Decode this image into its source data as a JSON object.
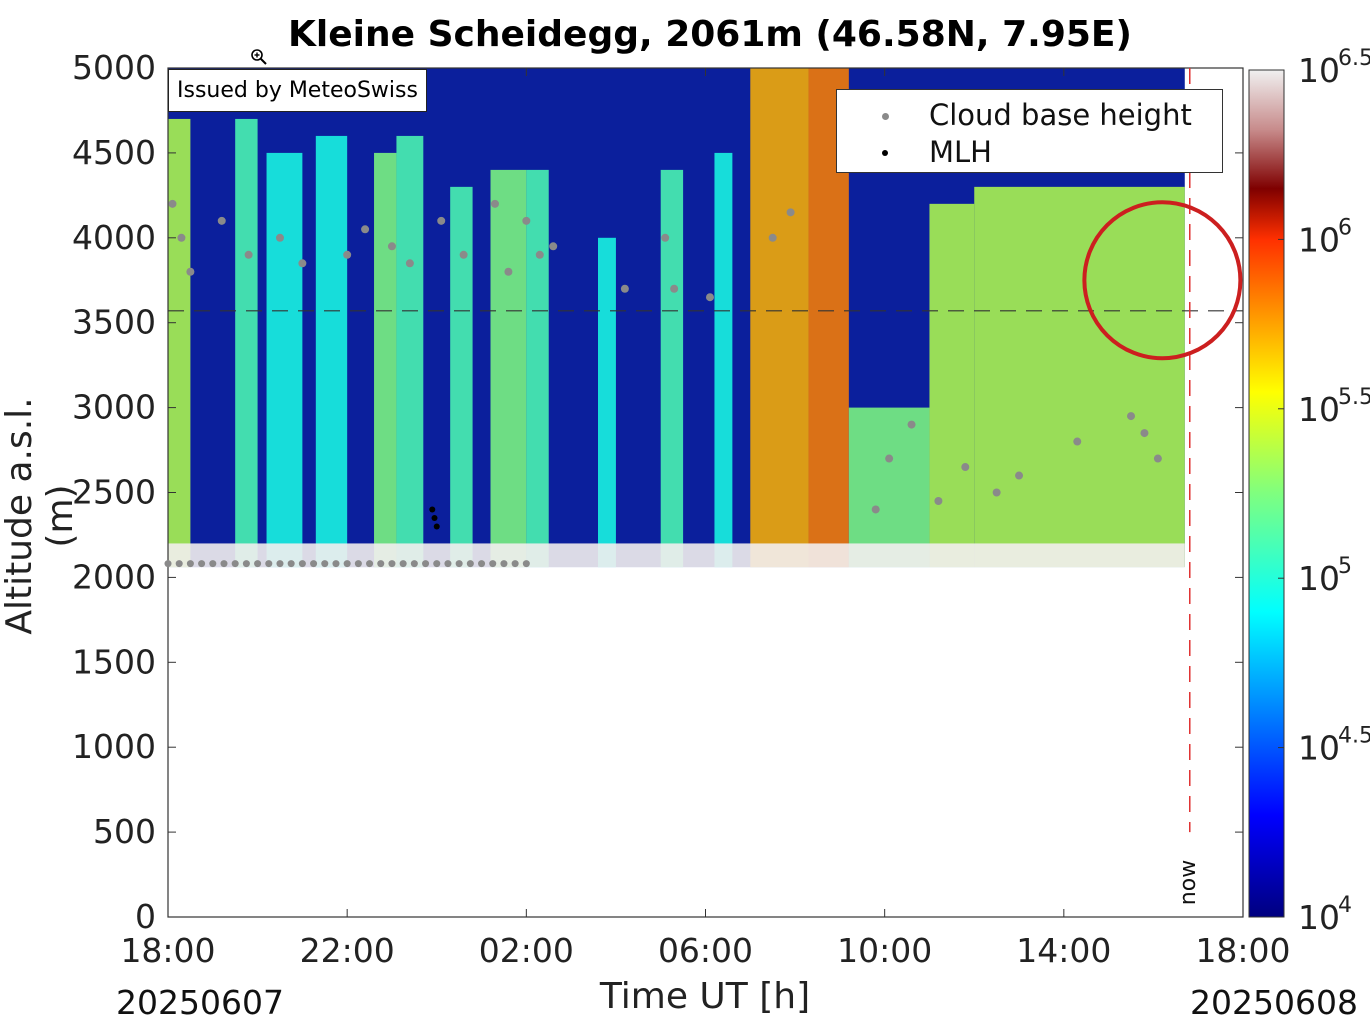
{
  "title": "Kleine Scheidegg, 2061m (46.58N, 7.95E)",
  "issued_by": "Issued by MeteoSwiss",
  "legend": {
    "items": [
      {
        "label": "Cloud base height",
        "color": "#8a8a8a"
      },
      {
        "label": "MLH",
        "color": "#000000"
      }
    ]
  },
  "now_label": "now",
  "date_start": "20250607",
  "date_end": "20250608",
  "icons": {
    "cursor": "zoom-in-icon"
  },
  "colors": {
    "annotation_circle": "#cc1f1f",
    "now_line": "#e03030",
    "background_fill": "#0b1f9c"
  },
  "chart_data": {
    "type": "heatmap",
    "xlabel": "Time UT [h]",
    "ylabel": "Altitude a.s.l. (m)",
    "x_ticks": [
      "18:00",
      "22:00",
      "02:00",
      "06:00",
      "10:00",
      "14:00",
      "18:00"
    ],
    "x_range_hours": [
      0,
      24
    ],
    "y_ticks": [
      0,
      500,
      1000,
      1500,
      2000,
      2500,
      3000,
      3500,
      4000,
      4500,
      5000
    ],
    "ylim": [
      0,
      5000
    ],
    "station_altitude_m": 2061,
    "now_hours": 22.7,
    "reference_altitude_m": 3570,
    "colorbar": {
      "ticks": [
        {
          "base": "10",
          "exp": "4"
        },
        {
          "base": "10",
          "exp": "4.5"
        },
        {
          "base": "10",
          "exp": "5"
        },
        {
          "base": "10",
          "exp": "5.5"
        },
        {
          "base": "10",
          "exp": "6"
        },
        {
          "base": "10",
          "exp": "6.5"
        }
      ],
      "log_range": [
        4,
        6.5
      ],
      "colormap": "jet"
    },
    "signal_columns": [
      {
        "t": 0.0,
        "t_end": 0.5,
        "top": 4700,
        "level": 0.55
      },
      {
        "t": 1.5,
        "t_end": 2.0,
        "top": 4700,
        "level": 0.45
      },
      {
        "t": 2.2,
        "t_end": 3.0,
        "top": 4500,
        "level": 0.4
      },
      {
        "t": 3.3,
        "t_end": 4.0,
        "top": 4600,
        "level": 0.4
      },
      {
        "t": 4.6,
        "t_end": 5.1,
        "top": 4500,
        "level": 0.5
      },
      {
        "t": 5.1,
        "t_end": 5.7,
        "top": 4600,
        "level": 0.45
      },
      {
        "t": 6.3,
        "t_end": 6.8,
        "top": 4300,
        "level": 0.45
      },
      {
        "t": 7.2,
        "t_end": 8.0,
        "top": 4400,
        "level": 0.5
      },
      {
        "t": 8.0,
        "t_end": 8.5,
        "top": 4400,
        "level": 0.45
      },
      {
        "t": 9.6,
        "t_end": 10.0,
        "top": 4000,
        "level": 0.4
      },
      {
        "t": 11.0,
        "t_end": 11.5,
        "top": 4400,
        "level": 0.45
      },
      {
        "t": 12.2,
        "t_end": 12.6,
        "top": 4500,
        "level": 0.4
      },
      {
        "t": 13.0,
        "t_end": 14.3,
        "top": 5000,
        "level": 0.7
      },
      {
        "t": 14.3,
        "t_end": 15.2,
        "top": 5000,
        "level": 0.75
      },
      {
        "t": 15.2,
        "t_end": 17.0,
        "top": 3000,
        "level": 0.5
      },
      {
        "t": 17.0,
        "t_end": 18.0,
        "top": 4200,
        "level": 0.55
      },
      {
        "t": 18.0,
        "t_end": 22.7,
        "top": 4300,
        "level": 0.55
      }
    ],
    "cloud_base_points_hours_m": [
      [
        0.1,
        4200
      ],
      [
        0.3,
        4000
      ],
      [
        0.5,
        3800
      ],
      [
        1.2,
        4100
      ],
      [
        1.8,
        3900
      ],
      [
        2.5,
        4000
      ],
      [
        3.0,
        3850
      ],
      [
        4.0,
        3900
      ],
      [
        4.4,
        4050
      ],
      [
        5.0,
        3950
      ],
      [
        5.4,
        3850
      ],
      [
        6.1,
        4100
      ],
      [
        6.6,
        3900
      ],
      [
        7.3,
        4200
      ],
      [
        7.6,
        3800
      ],
      [
        8.0,
        4100
      ],
      [
        8.3,
        3900
      ],
      [
        8.6,
        3950
      ],
      [
        10.2,
        3700
      ],
      [
        11.1,
        4000
      ],
      [
        11.3,
        3700
      ],
      [
        12.1,
        3650
      ],
      [
        13.5,
        4000
      ],
      [
        13.9,
        4150
      ],
      [
        15.8,
        2400
      ],
      [
        16.1,
        2700
      ],
      [
        16.6,
        2900
      ],
      [
        17.2,
        2450
      ],
      [
        17.8,
        2650
      ],
      [
        18.5,
        2500
      ],
      [
        19.0,
        2600
      ],
      [
        20.3,
        2800
      ],
      [
        21.5,
        2950
      ],
      [
        21.8,
        2850
      ],
      [
        22.1,
        2700
      ]
    ]
  }
}
